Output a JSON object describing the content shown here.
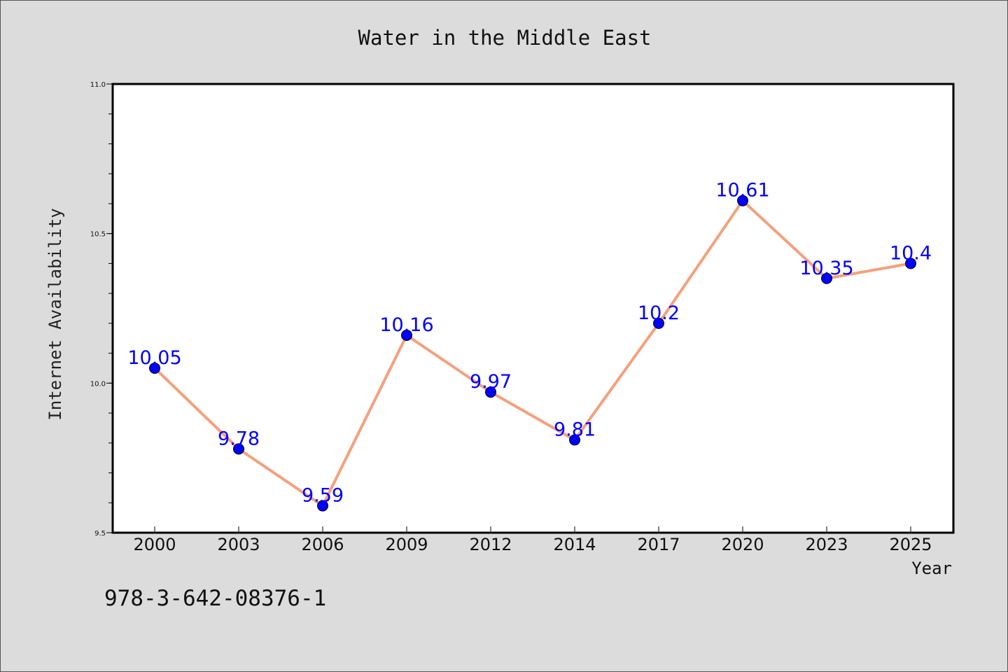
{
  "isbn": "978-3-642-08376-1",
  "colors": {
    "background": "#dcdcdc",
    "plot_background": "#ffffff",
    "line": "#f4a07c",
    "marker": "#0000ff",
    "label": "#0000ff"
  },
  "chart_data": {
    "type": "line",
    "title": "Water in the Middle East",
    "xlabel": "Year",
    "ylabel": "Internet Availability",
    "categories": [
      "2000",
      "2003",
      "2006",
      "2009",
      "2012",
      "2014",
      "2017",
      "2020",
      "2023",
      "2025"
    ],
    "series": [
      {
        "values": [
          10.05,
          9.78,
          9.59,
          10.16,
          9.97,
          9.81,
          10.2,
          10.61,
          10.35,
          10.4
        ],
        "labels": [
          "10.05",
          "9.78",
          "9.59",
          "10.16",
          "9.97",
          "9.81",
          "10.2",
          "10.61",
          "10.35",
          "10.4"
        ]
      }
    ],
    "ylim": [
      9.5,
      11.0
    ],
    "yticks": [
      "9.5",
      "10.0",
      "10.5",
      "11.0"
    ],
    "grid": false,
    "legend": "none"
  }
}
